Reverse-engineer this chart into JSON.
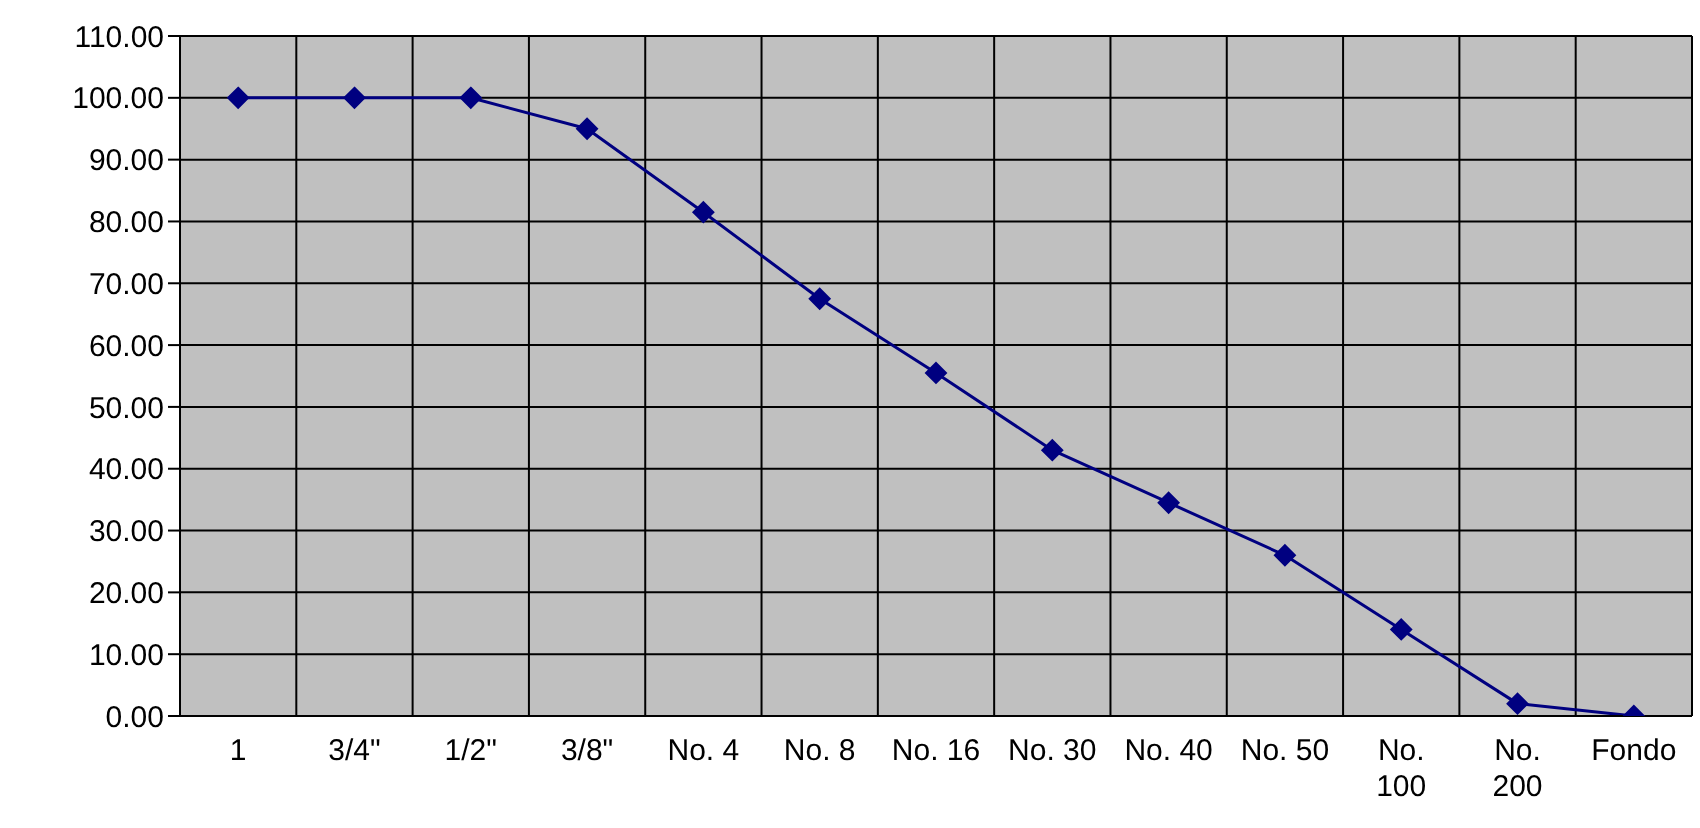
{
  "chart_data": {
    "type": "line",
    "categories": [
      "1",
      "3/4\"",
      "1/2\"",
      "3/8\"",
      "No. 4",
      "No. 8",
      "No. 16",
      "No. 30",
      "No. 40",
      "No. 50",
      "No. 100",
      "No. 200",
      "Fondo"
    ],
    "series": [
      {
        "color": "#000080",
        "values": [
          100,
          100,
          100,
          95,
          81.5,
          67.5,
          55.5,
          43,
          34.5,
          26,
          14,
          2,
          0
        ]
      }
    ],
    "ylim": [
      0,
      110
    ],
    "yticks": [
      {
        "value": 0,
        "label": "0.00"
      },
      {
        "value": 10,
        "label": "10.00"
      },
      {
        "value": 20,
        "label": "20.00"
      },
      {
        "value": 30,
        "label": "30.00"
      },
      {
        "value": 40,
        "label": "40.00"
      },
      {
        "value": 50,
        "label": "50.00"
      },
      {
        "value": 60,
        "label": "60.00"
      },
      {
        "value": 70,
        "label": "70.00"
      },
      {
        "value": 80,
        "label": "80.00"
      },
      {
        "value": 90,
        "label": "90.00"
      },
      {
        "value": 100,
        "label": "100.00"
      },
      {
        "value": 110,
        "label": "110.00"
      }
    ],
    "grid": true,
    "marker": "diamond",
    "line_style": "solid",
    "legend": false
  }
}
